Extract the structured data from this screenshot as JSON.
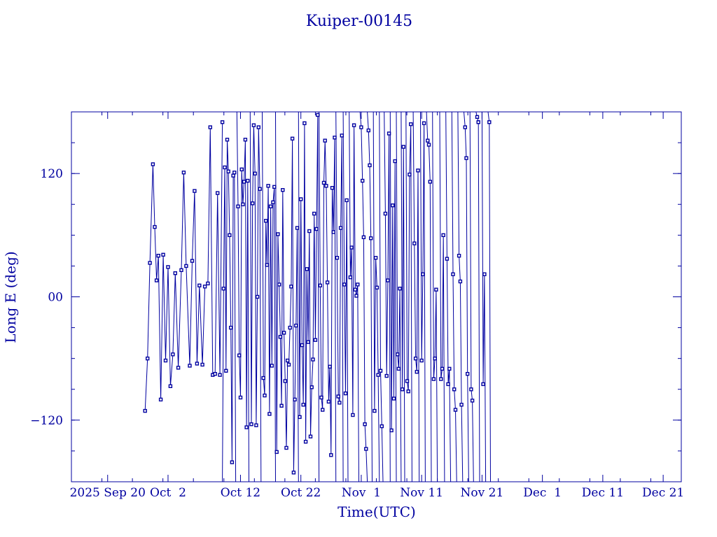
{
  "chart_data": {
    "type": "scatter",
    "title": "Kuiper-00145",
    "xlabel": "Time(UTC)",
    "ylabel": "Long E (deg)",
    "x_unit": "day-of-year 2025",
    "xlim": [
      257,
      358
    ],
    "ylim": [
      -180,
      180
    ],
    "y_ticks": [
      -120,
      0,
      120
    ],
    "y_tick_labels": [
      "−120",
      "00",
      "120"
    ],
    "x_ticks": [
      263,
      273,
      285,
      295,
      305,
      315,
      325,
      335,
      345,
      355
    ],
    "x_tick_labels": [
      "2025 Sep 20",
      "Oct  2",
      "Oct 12",
      "Oct 22",
      "Nov  1",
      "Nov 11",
      "Nov 21",
      "Dec  1",
      "Dec 11",
      "Dec 21"
    ],
    "grid": false,
    "line_color": "#0000a0",
    "marker": "square",
    "segments": [
      [
        [
          269.2,
          -111
        ],
        [
          269.6,
          -60
        ],
        [
          270.0,
          33
        ],
        [
          270.5,
          129
        ],
        [
          270.8,
          68
        ],
        [
          271.1,
          16
        ],
        [
          271.4,
          40
        ],
        [
          271.8,
          -100
        ],
        [
          272.2,
          41
        ],
        [
          272.6,
          -62
        ],
        [
          273.0,
          29
        ],
        [
          273.4,
          -87
        ],
        [
          273.8,
          -56
        ],
        [
          274.2,
          23
        ],
        [
          274.7,
          -69
        ],
        [
          275.2,
          26
        ],
        [
          275.6,
          121
        ],
        [
          276.0,
          30
        ],
        [
          276.6,
          -67
        ],
        [
          277.0,
          35
        ],
        [
          277.4,
          103
        ],
        [
          277.8,
          -65
        ],
        [
          278.2,
          11
        ],
        [
          278.7,
          -66
        ],
        [
          279.1,
          10
        ],
        [
          279.6,
          13
        ],
        [
          280.0,
          165
        ],
        [
          280.4,
          -76
        ],
        [
          280.8,
          -75
        ],
        [
          281.2,
          101
        ],
        [
          281.6,
          -76
        ],
        [
          282.0,
          170
        ]
      ],
      [
        [
          282.0,
          -180
        ],
        [
          282.2,
          8
        ],
        [
          282.4,
          126
        ],
        [
          282.6,
          -72
        ],
        [
          282.8,
          153
        ],
        [
          283.0,
          122
        ],
        [
          283.2,
          60
        ],
        [
          283.4,
          -30
        ],
        [
          283.6,
          -161
        ],
        [
          283.8,
          118
        ],
        [
          284.0,
          121
        ],
        [
          284.2,
          -180
        ]
      ],
      [
        [
          284.4,
          180
        ],
        [
          284.6,
          88
        ],
        [
          284.8,
          -57
        ],
        [
          285.0,
          -98
        ],
        [
          285.2,
          124
        ],
        [
          285.4,
          90
        ],
        [
          285.6,
          112
        ],
        [
          285.8,
          153
        ],
        [
          286.0,
          -127
        ],
        [
          286.2,
          113
        ],
        [
          286.4,
          -180
        ]
      ],
      [
        [
          286.6,
          180
        ],
        [
          286.8,
          -124
        ],
        [
          287.0,
          91
        ],
        [
          287.2,
          167
        ],
        [
          287.4,
          120
        ],
        [
          287.6,
          -125
        ],
        [
          287.8,
          0
        ],
        [
          288.0,
          165
        ],
        [
          288.2,
          105
        ],
        [
          288.4,
          -180
        ]
      ],
      [
        [
          288.6,
          180
        ],
        [
          288.8,
          -79
        ],
        [
          289.0,
          -96
        ],
        [
          289.2,
          74
        ],
        [
          289.4,
          31
        ],
        [
          289.6,
          108
        ],
        [
          289.8,
          -114
        ],
        [
          290.0,
          88
        ],
        [
          290.2,
          -67
        ],
        [
          290.4,
          92
        ],
        [
          290.6,
          107
        ],
        [
          290.8,
          -180
        ]
      ],
      [
        [
          290.8,
          180
        ],
        [
          291.0,
          -151
        ],
        [
          291.2,
          61
        ],
        [
          291.4,
          12
        ],
        [
          291.6,
          -39
        ],
        [
          291.8,
          -106
        ],
        [
          292.0,
          104
        ],
        [
          292.2,
          -35
        ],
        [
          292.4,
          -82
        ],
        [
          292.6,
          -147
        ],
        [
          292.8,
          -62
        ],
        [
          293.0,
          -66
        ],
        [
          293.2,
          -30
        ],
        [
          293.4,
          10
        ],
        [
          293.6,
          154
        ],
        [
          293.8,
          -171
        ],
        [
          294.0,
          -100
        ],
        [
          294.2,
          -28
        ],
        [
          294.4,
          67
        ],
        [
          294.6,
          -180
        ]
      ],
      [
        [
          294.6,
          180
        ],
        [
          294.8,
          -117
        ],
        [
          295.0,
          95
        ],
        [
          295.2,
          -47
        ],
        [
          295.4,
          -105
        ],
        [
          295.6,
          169
        ],
        [
          295.8,
          -141
        ],
        [
          296.0,
          27
        ],
        [
          296.2,
          -44
        ],
        [
          296.4,
          64
        ],
        [
          296.6,
          -136
        ],
        [
          296.8,
          -88
        ],
        [
          297.0,
          -61
        ],
        [
          297.2,
          81
        ],
        [
          297.4,
          -42
        ],
        [
          297.6,
          66
        ],
        [
          297.8,
          177
        ],
        [
          298.0,
          -180
        ]
      ],
      [
        [
          298.0,
          180
        ],
        [
          298.2,
          11
        ],
        [
          298.4,
          -98
        ],
        [
          298.6,
          -110
        ],
        [
          298.8,
          111
        ],
        [
          299.0,
          152
        ],
        [
          299.2,
          108
        ],
        [
          299.4,
          14
        ],
        [
          299.6,
          -102
        ],
        [
          299.8,
          -68
        ],
        [
          300.0,
          -154
        ],
        [
          300.2,
          106
        ],
        [
          300.4,
          63
        ],
        [
          300.6,
          155
        ],
        [
          300.8,
          -180
        ]
      ],
      [
        [
          300.8,
          180
        ],
        [
          301.0,
          38
        ],
        [
          301.2,
          -97
        ],
        [
          301.4,
          -103
        ],
        [
          301.6,
          67
        ],
        [
          301.8,
          157
        ],
        [
          302.0,
          -180
        ]
      ],
      [
        [
          302.0,
          180
        ],
        [
          302.2,
          12
        ],
        [
          302.4,
          -94
        ],
        [
          302.6,
          94
        ],
        [
          302.8,
          -180
        ]
      ],
      [
        [
          303.0,
          180
        ],
        [
          303.2,
          19
        ],
        [
          303.4,
          48
        ],
        [
          303.6,
          -115
        ],
        [
          303.8,
          167
        ],
        [
          304.0,
          7
        ],
        [
          304.2,
          1
        ],
        [
          304.4,
          12
        ],
        [
          304.6,
          -180
        ]
      ],
      [
        [
          304.8,
          180
        ],
        [
          305.0,
          165
        ],
        [
          305.2,
          113
        ],
        [
          305.4,
          58
        ],
        [
          305.6,
          -124
        ],
        [
          305.8,
          -148
        ],
        [
          306.0,
          -180
        ]
      ],
      [
        [
          306.0,
          180
        ],
        [
          306.2,
          162
        ],
        [
          306.4,
          128
        ],
        [
          306.6,
          57
        ],
        [
          306.8,
          -180
        ]
      ],
      [
        [
          307.0,
          180
        ],
        [
          307.2,
          -111
        ],
        [
          307.4,
          38
        ],
        [
          307.6,
          9
        ],
        [
          307.8,
          -76
        ],
        [
          308.0,
          -180
        ]
      ],
      [
        [
          308.0,
          180
        ],
        [
          308.2,
          -72
        ],
        [
          308.4,
          -126
        ],
        [
          308.6,
          -180
        ]
      ],
      [
        [
          308.8,
          180
        ],
        [
          309.0,
          81
        ],
        [
          309.2,
          -77
        ],
        [
          309.4,
          16
        ],
        [
          309.6,
          159
        ],
        [
          309.8,
          -180
        ]
      ],
      [
        [
          309.8,
          180
        ],
        [
          310.0,
          -130
        ],
        [
          310.2,
          89
        ],
        [
          310.4,
          -99
        ],
        [
          310.6,
          132
        ],
        [
          310.8,
          -180
        ]
      ],
      [
        [
          310.8,
          180
        ],
        [
          311.0,
          -56
        ],
        [
          311.2,
          -70
        ],
        [
          311.4,
          8
        ],
        [
          311.6,
          -180
        ]
      ],
      [
        [
          311.6,
          180
        ],
        [
          311.8,
          -90
        ],
        [
          312.0,
          146
        ],
        [
          312.2,
          -180
        ]
      ],
      [
        [
          312.4,
          180
        ],
        [
          312.6,
          -82
        ],
        [
          312.8,
          -92
        ],
        [
          313.0,
          119
        ],
        [
          313.2,
          168
        ],
        [
          313.4,
          -180
        ]
      ],
      [
        [
          313.6,
          180
        ],
        [
          313.8,
          52
        ],
        [
          314.0,
          -60
        ],
        [
          314.2,
          -73
        ],
        [
          314.4,
          123
        ],
        [
          314.6,
          -180
        ]
      ],
      [
        [
          314.8,
          180
        ],
        [
          315.0,
          -62
        ],
        [
          315.2,
          22
        ],
        [
          315.4,
          169
        ],
        [
          315.6,
          -180
        ]
      ],
      [
        [
          315.8,
          180
        ],
        [
          316.0,
          152
        ],
        [
          316.2,
          148
        ],
        [
          316.4,
          112
        ],
        [
          316.6,
          -180
        ]
      ],
      [
        [
          316.8,
          180
        ],
        [
          317.0,
          -80
        ],
        [
          317.2,
          -60
        ],
        [
          317.4,
          7
        ],
        [
          317.6,
          -180
        ]
      ],
      [
        [
          318.0,
          180
        ],
        [
          318.2,
          -80
        ],
        [
          318.4,
          -70
        ],
        [
          318.6,
          60
        ],
        [
          318.8,
          -180
        ]
      ],
      [
        [
          319.0,
          180
        ],
        [
          319.2,
          37
        ],
        [
          319.4,
          -85
        ],
        [
          319.6,
          -70
        ],
        [
          319.8,
          -180
        ]
      ],
      [
        [
          320.0,
          180
        ],
        [
          320.2,
          22
        ],
        [
          320.4,
          -90
        ],
        [
          320.6,
          -110
        ],
        [
          320.8,
          -180
        ]
      ],
      [
        [
          321.0,
          180
        ],
        [
          321.2,
          40
        ],
        [
          321.4,
          15
        ],
        [
          321.6,
          -105
        ],
        [
          321.8,
          -180
        ]
      ],
      [
        [
          322.0,
          180
        ],
        [
          322.2,
          165
        ],
        [
          322.4,
          135
        ],
        [
          322.6,
          -75
        ],
        [
          322.8,
          -180
        ]
      ],
      [
        [
          323.0,
          180
        ],
        [
          323.2,
          -90
        ],
        [
          323.4,
          -101
        ],
        [
          323.6,
          -180
        ]
      ],
      [
        [
          324.0,
          180
        ],
        [
          324.2,
          175
        ],
        [
          324.4,
          170
        ],
        [
          324.6,
          -180
        ]
      ],
      [
        [
          325.0,
          180
        ],
        [
          325.2,
          -85
        ],
        [
          325.4,
          22
        ],
        [
          325.6,
          -180
        ]
      ],
      [
        [
          326.0,
          180
        ],
        [
          326.2,
          170
        ],
        [
          326.4,
          -180
        ]
      ]
    ]
  }
}
